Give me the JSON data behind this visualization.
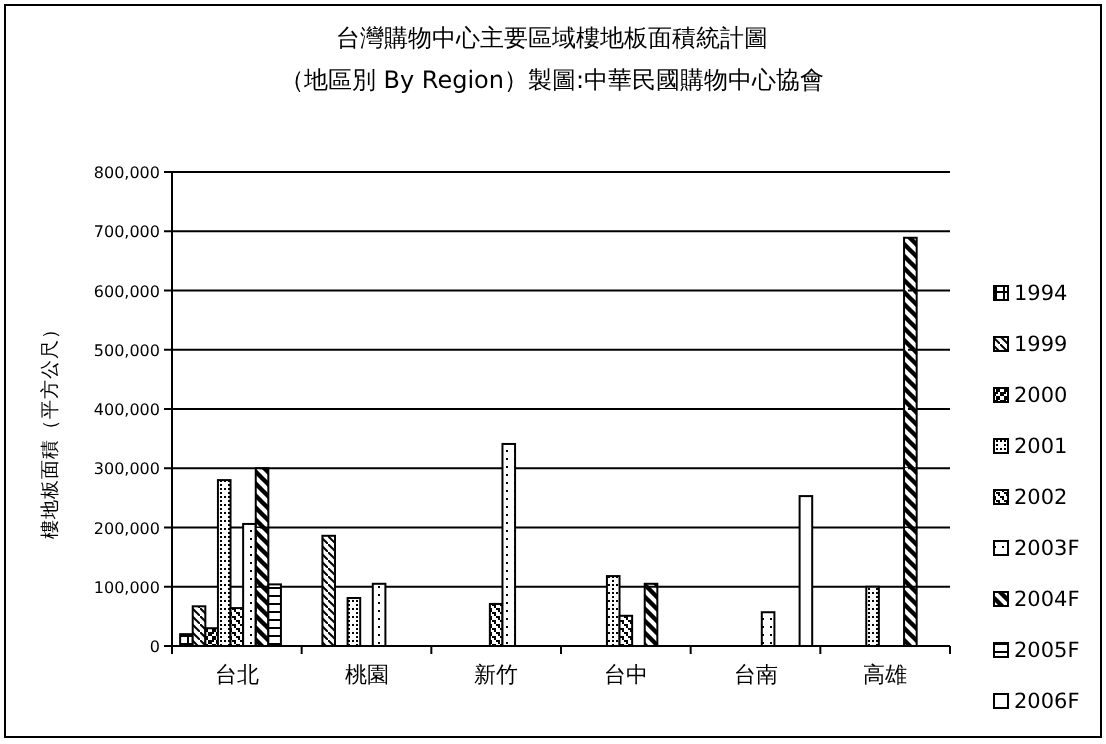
{
  "chart_data": {
    "type": "bar",
    "title": "台灣購物中心主要區域樓地板面積統計圖",
    "subtitle": "（地區別 By Region）製圖:中華民國購物中心協會",
    "ylabel": "樓地板面積（平方公尺）",
    "categories": [
      "台北",
      "桃園",
      "新竹",
      "台中",
      "台南",
      "高雄"
    ],
    "series": [
      {
        "name": "1994",
        "color": "#000000",
        "values": [
          20000,
          null,
          null,
          null,
          null,
          null
        ]
      },
      {
        "name": "1999",
        "color": "#000000",
        "values": [
          67000,
          186000,
          null,
          null,
          null,
          null
        ]
      },
      {
        "name": "2000",
        "color": "#000000",
        "values": [
          30000,
          null,
          null,
          null,
          null,
          null
        ]
      },
      {
        "name": "2001",
        "color": "#000000",
        "values": [
          280000,
          81000,
          null,
          118000,
          null,
          100000
        ]
      },
      {
        "name": "2002",
        "color": "#000000",
        "values": [
          64000,
          null,
          71000,
          51000,
          null,
          null
        ]
      },
      {
        "name": "2003F",
        "color": "#000000",
        "values": [
          206000,
          105000,
          341000,
          null,
          57000,
          null
        ]
      },
      {
        "name": "2004F",
        "color": "#000000",
        "values": [
          300000,
          null,
          null,
          105000,
          null,
          689000
        ]
      },
      {
        "name": "2005F",
        "color": "#000000",
        "values": [
          104000,
          null,
          null,
          null,
          null,
          null
        ]
      },
      {
        "name": "2006F",
        "color": "#000000",
        "values": [
          null,
          null,
          null,
          null,
          253000,
          null
        ]
      }
    ],
    "ylim": [
      0,
      800000
    ],
    "yticks": [
      {
        "value": 0,
        "label": "0"
      },
      {
        "value": 100000,
        "label": "100,000"
      },
      {
        "value": 200000,
        "label": "200,000"
      },
      {
        "value": 300000,
        "label": "300,000"
      },
      {
        "value": 400000,
        "label": "400,000"
      },
      {
        "value": 500000,
        "label": "500,000"
      },
      {
        "value": 600000,
        "label": "600,000"
      },
      {
        "value": 700000,
        "label": "700,000"
      },
      {
        "value": 800000,
        "label": "800,000"
      }
    ],
    "grid": "y",
    "legend": "right"
  }
}
